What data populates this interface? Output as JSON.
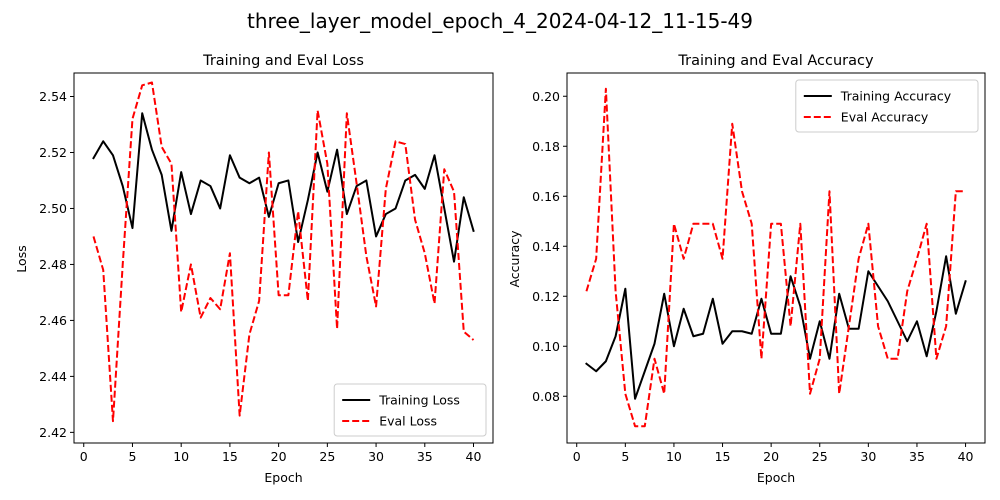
{
  "figure": {
    "suptitle": "three_layer_model_epoch_4_2024-04-12_11-15-49"
  },
  "chart_data": [
    {
      "type": "line",
      "title": "Training and Eval Loss",
      "xlabel": "Epoch",
      "ylabel": "Loss",
      "xlim": [
        -1,
        42
      ],
      "ylim": [
        2.4162,
        2.5484
      ],
      "xticks": [
        0,
        5,
        10,
        15,
        20,
        25,
        30,
        35,
        40
      ],
      "yticks": [
        2.42,
        2.44,
        2.46,
        2.48,
        2.5,
        2.52,
        2.54
      ],
      "ytick_decimals": 2,
      "legend_position": "lower-right",
      "grid": false,
      "x": [
        1,
        2,
        3,
        4,
        5,
        6,
        7,
        8,
        9,
        10,
        11,
        12,
        13,
        14,
        15,
        16,
        17,
        18,
        19,
        20,
        21,
        22,
        23,
        24,
        25,
        26,
        27,
        28,
        29,
        30,
        31,
        32,
        33,
        34,
        35,
        36,
        37,
        38,
        39,
        40
      ],
      "series": [
        {
          "name": "Training Loss",
          "color": "#000000",
          "dash": "solid",
          "values": [
            2.518,
            2.524,
            2.519,
            2.508,
            2.493,
            2.534,
            2.521,
            2.512,
            2.492,
            2.513,
            2.498,
            2.51,
            2.508,
            2.5,
            2.519,
            2.511,
            2.509,
            2.511,
            2.497,
            2.509,
            2.51,
            2.488,
            2.503,
            2.52,
            2.506,
            2.521,
            2.498,
            2.508,
            2.51,
            2.49,
            2.498,
            2.5,
            2.51,
            2.512,
            2.507,
            2.519,
            2.5,
            2.481,
            2.504,
            2.492
          ]
        },
        {
          "name": "Eval Loss",
          "color": "#ff0000",
          "dash": "dashed",
          "values": [
            2.49,
            2.478,
            2.424,
            2.48,
            2.532,
            2.544,
            2.545,
            2.522,
            2.516,
            2.463,
            2.48,
            2.461,
            2.468,
            2.464,
            2.484,
            2.426,
            2.455,
            2.467,
            2.52,
            2.469,
            2.469,
            2.499,
            2.467,
            2.535,
            2.516,
            2.457,
            2.534,
            2.509,
            2.483,
            2.465,
            2.507,
            2.524,
            2.523,
            2.496,
            2.484,
            2.466,
            2.514,
            2.506,
            2.456,
            2.453
          ]
        }
      ]
    },
    {
      "type": "line",
      "title": "Training and Eval Accuracy",
      "xlabel": "Epoch",
      "ylabel": "Accuracy",
      "xlim": [
        -1,
        42
      ],
      "ylim": [
        0.0613,
        0.2093
      ],
      "xticks": [
        0,
        5,
        10,
        15,
        20,
        25,
        30,
        35,
        40
      ],
      "yticks": [
        0.08,
        0.1,
        0.12,
        0.14,
        0.16,
        0.18,
        0.2
      ],
      "ytick_decimals": 2,
      "legend_position": "upper-right",
      "grid": false,
      "x": [
        1,
        2,
        3,
        4,
        5,
        6,
        7,
        8,
        9,
        10,
        11,
        12,
        13,
        14,
        15,
        16,
        17,
        18,
        19,
        20,
        21,
        22,
        23,
        24,
        25,
        26,
        27,
        28,
        29,
        30,
        31,
        32,
        33,
        34,
        35,
        36,
        37,
        38,
        39,
        40
      ],
      "series": [
        {
          "name": "Training Accuracy",
          "color": "#000000",
          "dash": "solid",
          "values": [
            0.093,
            0.09,
            0.094,
            0.104,
            0.123,
            0.079,
            0.09,
            0.101,
            0.121,
            0.1,
            0.115,
            0.104,
            0.105,
            0.119,
            0.101,
            0.106,
            0.106,
            0.105,
            0.119,
            0.105,
            0.105,
            0.128,
            0.116,
            0.095,
            0.11,
            0.095,
            0.121,
            0.107,
            0.107,
            0.13,
            0.124,
            0.118,
            0.11,
            0.102,
            0.11,
            0.096,
            0.114,
            0.136,
            0.113,
            0.126
          ]
        },
        {
          "name": "Eval Accuracy",
          "color": "#ff0000",
          "dash": "dashed",
          "values": [
            0.122,
            0.135,
            0.203,
            0.122,
            0.081,
            0.068,
            0.068,
            0.095,
            0.081,
            0.149,
            0.135,
            0.149,
            0.149,
            0.149,
            0.135,
            0.189,
            0.162,
            0.149,
            0.095,
            0.149,
            0.149,
            0.108,
            0.149,
            0.081,
            0.095,
            0.162,
            0.081,
            0.108,
            0.135,
            0.149,
            0.108,
            0.095,
            0.095,
            0.122,
            0.135,
            0.149,
            0.095,
            0.108,
            0.162,
            0.162
          ]
        }
      ]
    }
  ]
}
